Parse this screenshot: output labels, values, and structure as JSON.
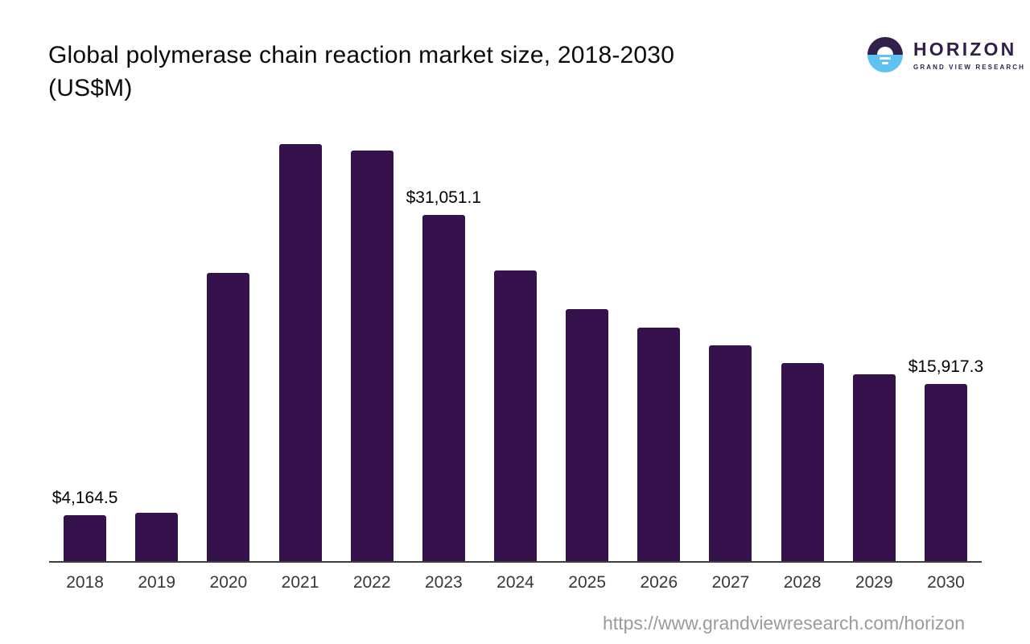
{
  "header": {
    "title_line1": "Global polymerase chain reaction market size, 2018-2030",
    "title_line2": "(US$M)"
  },
  "logo": {
    "brand": "HORIZON",
    "subtitle": "GRAND VIEW RESEARCH",
    "icon": "sunrise-over-horizon-icon",
    "colors": {
      "purple": "#32204B",
      "blue": "#5EC3F0"
    }
  },
  "footer": {
    "url": "https://www.grandviewresearch.com/horizon"
  },
  "chart_data": {
    "type": "bar",
    "title": "Global polymerase chain reaction market size, 2018-2030 (US$M)",
    "categories": [
      "2018",
      "2019",
      "2020",
      "2021",
      "2022",
      "2023",
      "2024",
      "2025",
      "2026",
      "2027",
      "2028",
      "2029",
      "2030"
    ],
    "values": [
      4164.5,
      4400,
      25900,
      37400,
      36800,
      31051.1,
      26100,
      22650,
      21000,
      19400,
      17800,
      16800,
      15917.3
    ],
    "data_labels": [
      "$4,164.5",
      null,
      null,
      null,
      null,
      "$31,051.1",
      null,
      null,
      null,
      null,
      null,
      null,
      "$15,917.3"
    ],
    "xlabel": "",
    "ylabel": "",
    "ylim": [
      0,
      39500
    ],
    "grid": false,
    "legend": false,
    "bar_color": "#36124C",
    "axis_color": "#3F3F3F",
    "tick_color": "#383838",
    "data_label_color": "#000000"
  }
}
